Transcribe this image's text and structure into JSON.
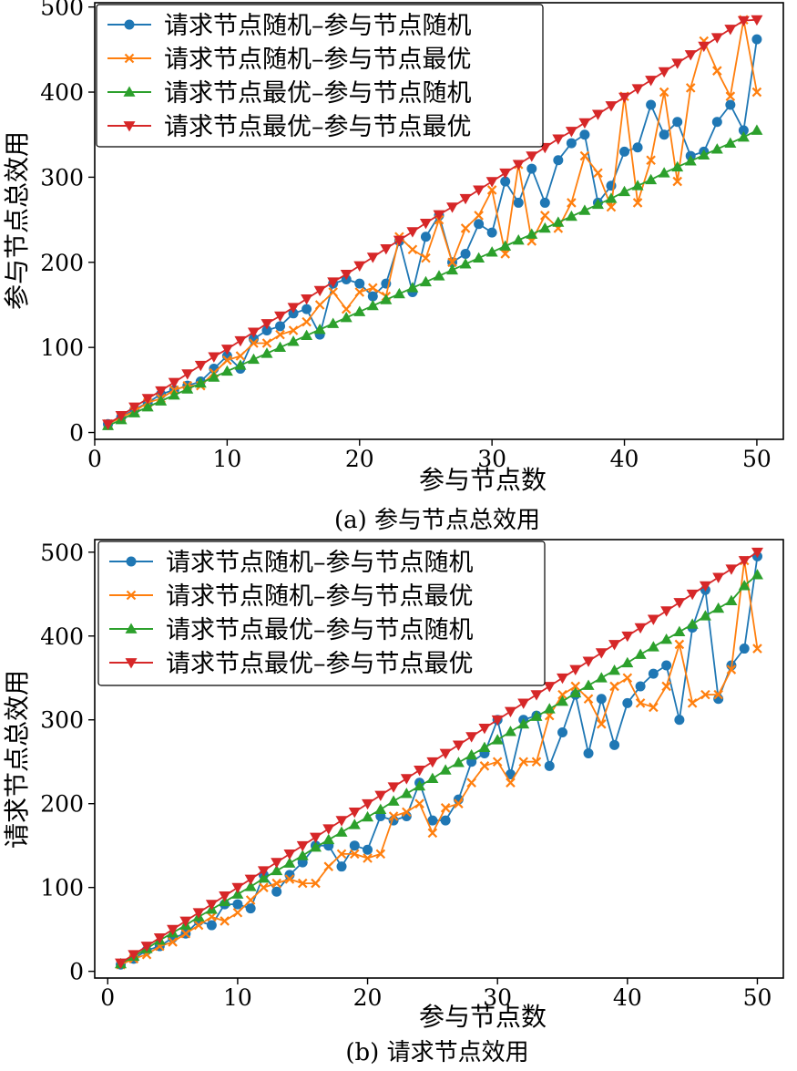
{
  "captions": {
    "a": "(a) 参与节点总效用",
    "b": "(b) 请求节点效用"
  },
  "colors": {
    "blue": "#1f77b4",
    "orange": "#ff7f0e",
    "green": "#2ca02c",
    "red": "#d62728"
  },
  "chart_data": [
    {
      "type": "line",
      "xlabel": "参与节点数",
      "ylabel": "参与节点总效用",
      "xlim": [
        0,
        52
      ],
      "ylim": [
        -8,
        505
      ],
      "xticks": [
        0,
        10,
        20,
        30,
        40,
        50
      ],
      "yticks": [
        0,
        100,
        200,
        300,
        400,
        500
      ],
      "grid": false,
      "legend_position": "top-left",
      "x": [
        1,
        2,
        3,
        4,
        5,
        6,
        7,
        8,
        9,
        10,
        11,
        12,
        13,
        14,
        15,
        16,
        17,
        18,
        19,
        20,
        21,
        22,
        23,
        24,
        25,
        26,
        27,
        28,
        29,
        30,
        31,
        32,
        33,
        34,
        35,
        36,
        37,
        38,
        39,
        40,
        41,
        42,
        43,
        44,
        45,
        46,
        47,
        48,
        49,
        50
      ],
      "series": [
        {
          "name": "请求节点随机–参与节点随机",
          "marker": "circle",
          "color": "#1f77b4",
          "values": [
            10,
            18,
            27,
            35,
            45,
            50,
            55,
            60,
            75,
            90,
            75,
            110,
            120,
            125,
            140,
            145,
            115,
            175,
            180,
            175,
            160,
            175,
            225,
            165,
            230,
            255,
            200,
            210,
            245,
            235,
            295,
            270,
            310,
            270,
            320,
            340,
            350,
            270,
            290,
            330,
            335,
            385,
            350,
            365,
            325,
            330,
            365,
            385,
            355,
            462
          ]
        },
        {
          "name": "请求节点随机–参与节点最优",
          "marker": "x",
          "color": "#ff7f0e",
          "values": [
            10,
            18,
            25,
            35,
            40,
            50,
            55,
            55,
            70,
            85,
            90,
            105,
            105,
            115,
            120,
            130,
            150,
            165,
            145,
            165,
            170,
            160,
            230,
            215,
            205,
            250,
            200,
            240,
            255,
            285,
            210,
            315,
            225,
            255,
            240,
            270,
            325,
            305,
            265,
            395,
            270,
            320,
            400,
            295,
            405,
            460,
            425,
            395,
            485,
            400
          ]
        },
        {
          "name": "请求节点最优–参与节点随机",
          "marker": "triangle-up",
          "color": "#2ca02c",
          "values": [
            8,
            15,
            23,
            30,
            37,
            44,
            51,
            58,
            65,
            72,
            79,
            86,
            93,
            100,
            107,
            114,
            121,
            128,
            135,
            142,
            149,
            156,
            163,
            170,
            177,
            184,
            191,
            198,
            205,
            212,
            219,
            226,
            233,
            240,
            247,
            254,
            261,
            268,
            275,
            283,
            290,
            297,
            305,
            312,
            319,
            326,
            333,
            340,
            347,
            355
          ]
        },
        {
          "name": "请求节点最优–参与节点最优",
          "marker": "triangle-down",
          "color": "#d62728",
          "values": [
            10,
            20,
            30,
            40,
            49,
            59,
            69,
            79,
            89,
            98,
            108,
            118,
            128,
            137,
            147,
            157,
            167,
            177,
            186,
            196,
            206,
            216,
            226,
            236,
            246,
            256,
            265,
            275,
            285,
            295,
            305,
            315,
            325,
            335,
            345,
            354,
            364,
            374,
            384,
            394,
            404,
            414,
            424,
            434,
            444,
            454,
            464,
            474,
            484,
            485
          ]
        }
      ]
    },
    {
      "type": "line",
      "xlabel": "参与节点数",
      "ylabel": "请求节点总效用",
      "xlim": [
        -1,
        52
      ],
      "ylim": [
        -8,
        515
      ],
      "xticks": [
        0,
        10,
        20,
        30,
        40,
        50
      ],
      "yticks": [
        0,
        100,
        200,
        300,
        400,
        500
      ],
      "grid": false,
      "legend_position": "top-left",
      "x": [
        1,
        2,
        3,
        4,
        5,
        6,
        7,
        8,
        9,
        10,
        11,
        12,
        13,
        14,
        15,
        16,
        17,
        18,
        19,
        20,
        21,
        22,
        23,
        24,
        25,
        26,
        27,
        28,
        29,
        30,
        31,
        32,
        33,
        34,
        35,
        36,
        37,
        38,
        39,
        40,
        41,
        42,
        43,
        44,
        45,
        46,
        47,
        48,
        49,
        50
      ],
      "series": [
        {
          "name": "请求节点随机–参与节点随机",
          "marker": "circle",
          "color": "#1f77b4",
          "values": [
            8,
            15,
            25,
            30,
            40,
            45,
            60,
            55,
            80,
            80,
            75,
            115,
            95,
            115,
            130,
            150,
            150,
            125,
            150,
            145,
            185,
            180,
            185,
            225,
            180,
            180,
            205,
            250,
            260,
            300,
            235,
            300,
            305,
            245,
            285,
            330,
            260,
            325,
            270,
            320,
            340,
            355,
            365,
            300,
            410,
            455,
            325,
            365,
            385,
            495
          ]
        },
        {
          "name": "请求节点随机–参与节点最优",
          "marker": "x",
          "color": "#ff7f0e",
          "values": [
            8,
            15,
            20,
            30,
            35,
            45,
            55,
            65,
            60,
            70,
            85,
            100,
            105,
            110,
            105,
            105,
            125,
            140,
            140,
            135,
            140,
            185,
            190,
            200,
            165,
            195,
            200,
            225,
            245,
            250,
            225,
            250,
            250,
            305,
            330,
            340,
            325,
            295,
            340,
            350,
            320,
            315,
            340,
            390,
            320,
            330,
            330,
            360,
            490,
            385
          ]
        },
        {
          "name": "请求节点最优–参与节点随机",
          "marker": "triangle-up",
          "color": "#2ca02c",
          "values": [
            9,
            18,
            27,
            37,
            46,
            55,
            65,
            74,
            83,
            92,
            101,
            111,
            120,
            129,
            138,
            148,
            157,
            166,
            175,
            184,
            193,
            203,
            212,
            221,
            230,
            240,
            249,
            258,
            267,
            276,
            286,
            295,
            304,
            313,
            322,
            332,
            341,
            350,
            359,
            368,
            378,
            387,
            396,
            405,
            414,
            424,
            433,
            442,
            460,
            473
          ]
        },
        {
          "name": "请求节点最优–参与节点最优",
          "marker": "triangle-down",
          "color": "#d62728",
          "values": [
            10,
            20,
            30,
            40,
            50,
            60,
            70,
            80,
            90,
            100,
            110,
            120,
            130,
            140,
            150,
            160,
            170,
            180,
            190,
            200,
            210,
            220,
            230,
            240,
            250,
            260,
            270,
            280,
            290,
            300,
            310,
            320,
            330,
            340,
            350,
            360,
            370,
            380,
            390,
            400,
            410,
            420,
            430,
            440,
            450,
            460,
            470,
            480,
            490,
            500
          ]
        }
      ]
    }
  ]
}
